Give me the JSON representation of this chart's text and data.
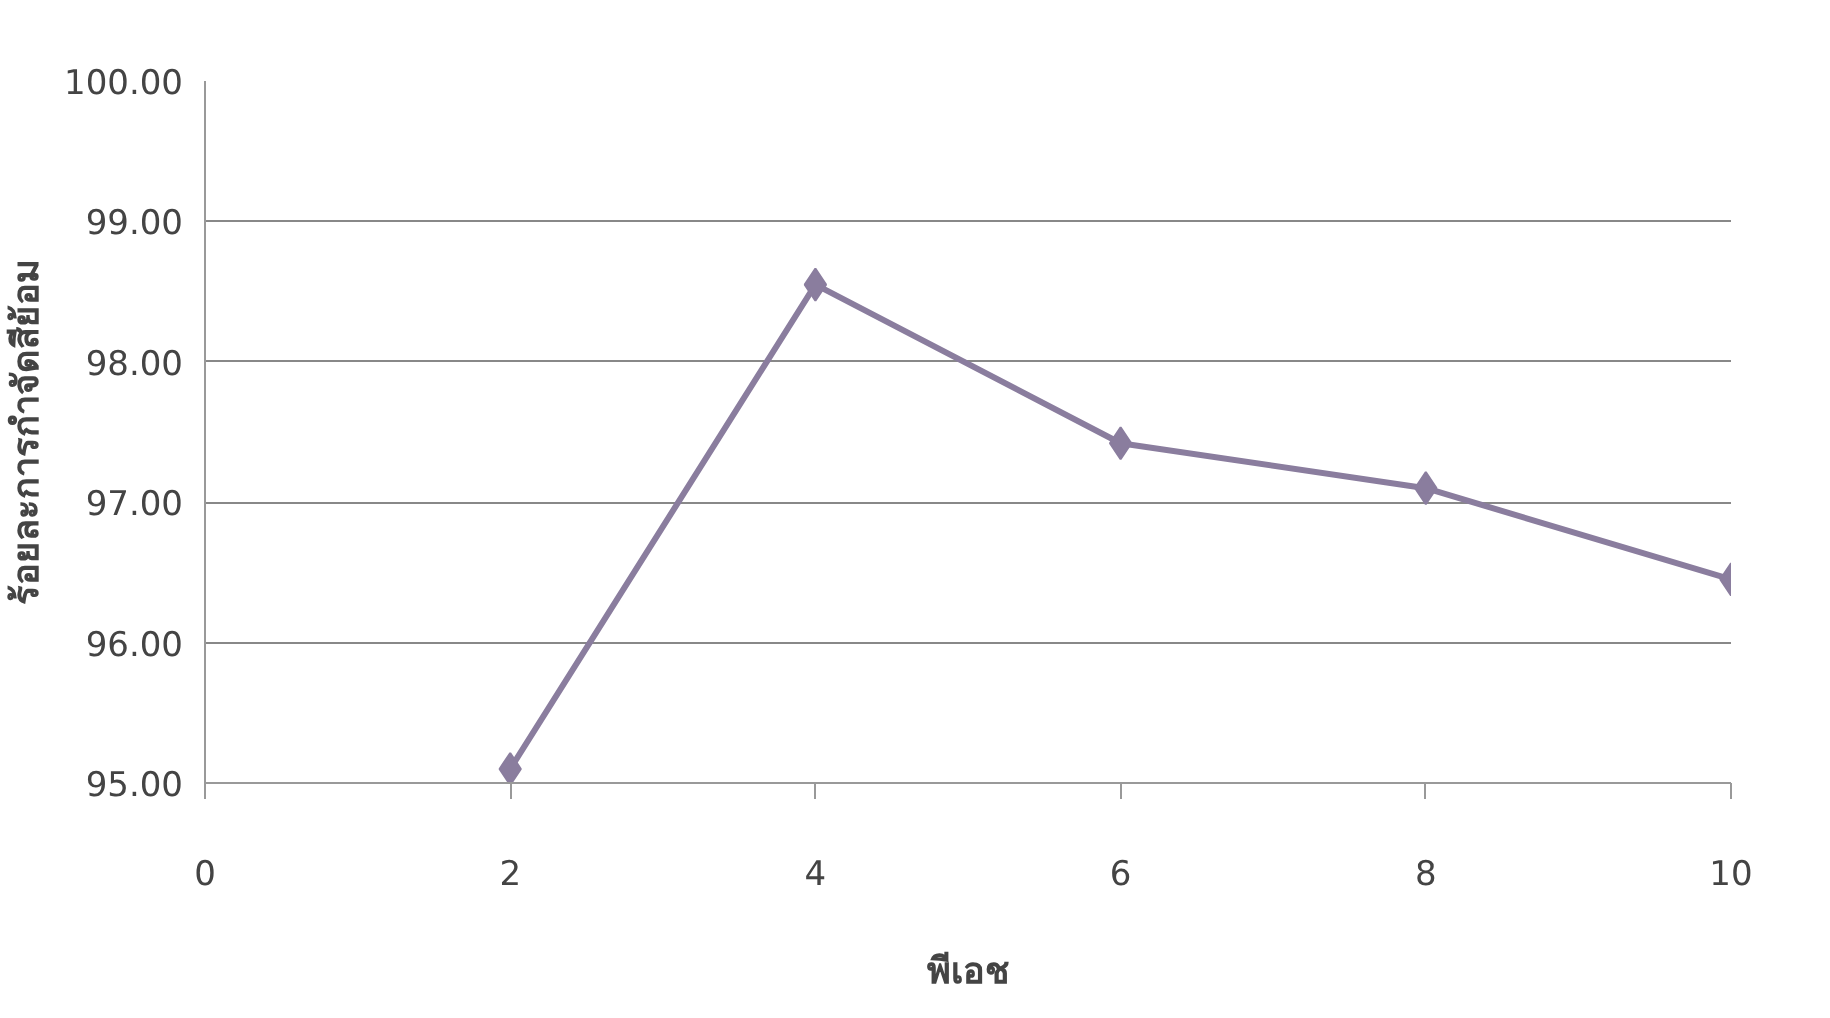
{
  "chart_data": {
    "type": "line",
    "xlabel": "พีเอช",
    "ylabel": "ร้อยละการกำจัดสีย้อม",
    "x": [
      2,
      4,
      6,
      8,
      10
    ],
    "series": [
      {
        "color": "#8a7d9e",
        "values": [
          95.1,
          98.55,
          97.42,
          97.1,
          96.45
        ]
      }
    ],
    "xlim": [
      0,
      10
    ],
    "xticks": [
      0,
      2,
      4,
      6,
      8,
      10
    ],
    "ylim": [
      95,
      100
    ],
    "yticks": [
      {
        "value": 95,
        "label": "95.00"
      },
      {
        "value": 96,
        "label": "96.00"
      },
      {
        "value": 97,
        "label": "97.00"
      },
      {
        "value": 98,
        "label": "98.00"
      },
      {
        "value": 99,
        "label": "99.00"
      },
      {
        "value": 100,
        "label": "100.00"
      }
    ],
    "grid": "y",
    "marker": "diamond",
    "line_style": "solid"
  }
}
